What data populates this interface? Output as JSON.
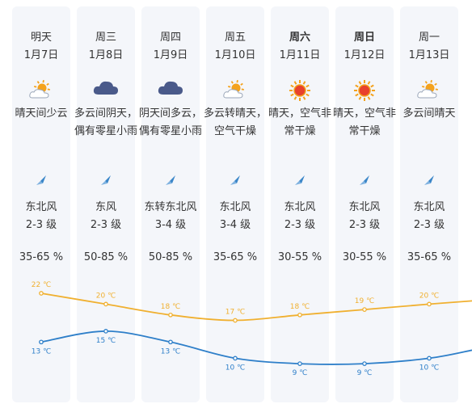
{
  "colors": {
    "high_line": "#f0b030",
    "low_line": "#2e7fc9",
    "panel_bg": "#f4f6fa",
    "cloud": "#4a5a8a",
    "sun": "#f4a21c",
    "wind_icon": "#3a86c8"
  },
  "days": [
    {
      "weekday": "明天",
      "date": "1月7日",
      "icon": "sun-cloud-icon",
      "desc": "晴天间少云",
      "wind_dir": "东北风",
      "wind_level": "2-3 级",
      "humidity": "35-65 %",
      "high": "22 ℃",
      "low": "13 ℃",
      "weekend": false
    },
    {
      "weekday": "周三",
      "date": "1月8日",
      "icon": "cloud-icon",
      "desc": "多云间阴天，偶有零星小雨",
      "wind_dir": "东风",
      "wind_level": "2-3 级",
      "humidity": "50-85 %",
      "high": "20 ℃",
      "low": "15 ℃",
      "weekend": false
    },
    {
      "weekday": "周四",
      "date": "1月9日",
      "icon": "cloud-icon",
      "desc": "阴天间多云，偶有零星小雨",
      "wind_dir": "东转东北风",
      "wind_level": "3-4 级",
      "humidity": "50-85 %",
      "high": "18 ℃",
      "low": "13 ℃",
      "weekend": false
    },
    {
      "weekday": "周五",
      "date": "1月10日",
      "icon": "sun-cloud-icon",
      "desc": "多云转晴天，空气干燥",
      "wind_dir": "东北风",
      "wind_level": "3-4 级",
      "humidity": "35-65 %",
      "high": "17 ℃",
      "low": "10 ℃",
      "weekend": false
    },
    {
      "weekday": "周六",
      "date": "1月11日",
      "icon": "sun-icon",
      "desc": "晴天，空气非常干燥",
      "wind_dir": "东北风",
      "wind_level": "2-3 级",
      "humidity": "30-55 %",
      "high": "18 ℃",
      "low": "9 ℃",
      "weekend": true
    },
    {
      "weekday": "周日",
      "date": "1月12日",
      "icon": "sun-icon",
      "desc": "晴天，空气非常干燥",
      "wind_dir": "东北风",
      "wind_level": "2-3 级",
      "humidity": "30-55 %",
      "high": "19 ℃",
      "low": "9 ℃",
      "weekend": true
    },
    {
      "weekday": "周一",
      "date": "1月13日",
      "icon": "sun-cloud-icon",
      "desc": "多云间晴天",
      "wind_dir": "东北风",
      "wind_level": "2-3 级",
      "humidity": "35-65 %",
      "high": "20 ℃",
      "low": "10 ℃",
      "weekend": false
    }
  ],
  "chart_data": {
    "type": "line",
    "x": [
      "1月7日",
      "1月8日",
      "1月9日",
      "1月10日",
      "1月11日",
      "1月12日",
      "1月13日"
    ],
    "series": [
      {
        "values": [
          22,
          20,
          18,
          17,
          18,
          19,
          20
        ]
      },
      {
        "values": [
          13,
          15,
          13,
          10,
          9,
          9,
          10
        ]
      }
    ],
    "unit": "℃"
  }
}
